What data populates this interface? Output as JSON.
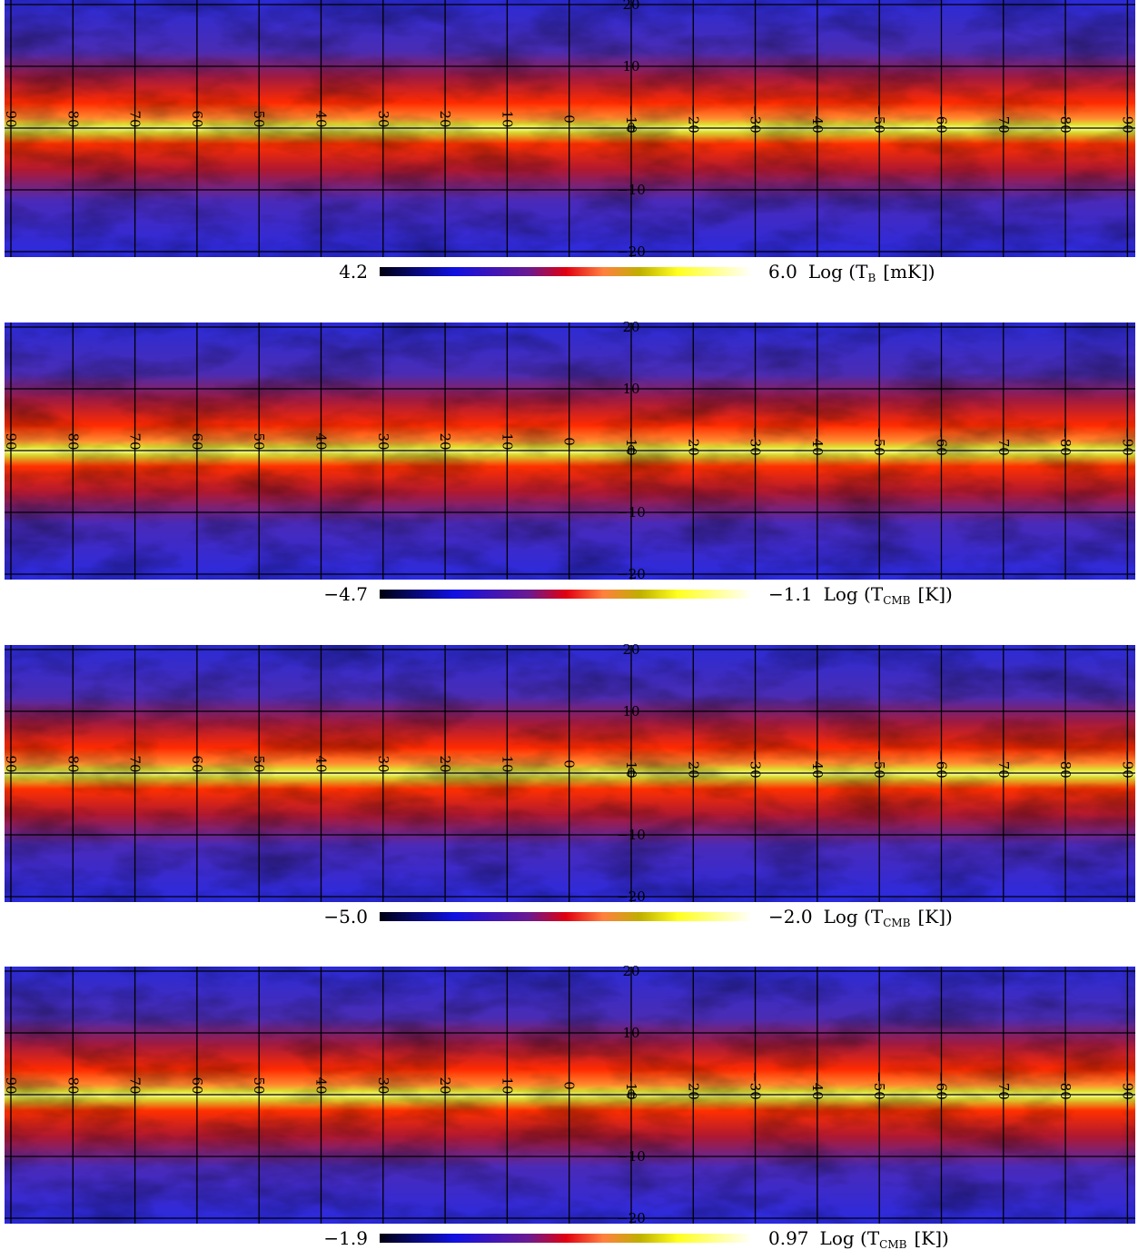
{
  "panels": [
    {
      "colorbar": {
        "min": "4.2",
        "max": "6.0",
        "unit": {
          "text": "Log (T",
          "sub": "B",
          "end": "[mK])"
        }
      }
    },
    {
      "colorbar": {
        "min": "−4.7",
        "max": "−1.1",
        "unit": {
          "text": "Log (T",
          "sub": "CMB",
          "end": "[K])"
        }
      }
    },
    {
      "colorbar": {
        "min": "−5.0",
        "max": "−2.0",
        "unit": {
          "text": "Log (T",
          "sub": "CMB",
          "end": "[K])"
        }
      }
    },
    {
      "colorbar": {
        "min": "−1.9",
        "max": "0.97",
        "unit": {
          "text": "Log (T",
          "sub": "CMB",
          "end": "[K])"
        }
      }
    }
  ],
  "longitude_labels": [
    "90",
    "80",
    "70",
    "60",
    "50",
    "40",
    "30",
    "20",
    "10",
    "0",
    "−10",
    "−20",
    "−30",
    "−40",
    "−50",
    "−60",
    "−70",
    "−80",
    "−90"
  ],
  "latitude_labels": [
    "20",
    "10",
    "0",
    "−10",
    "−20"
  ]
}
